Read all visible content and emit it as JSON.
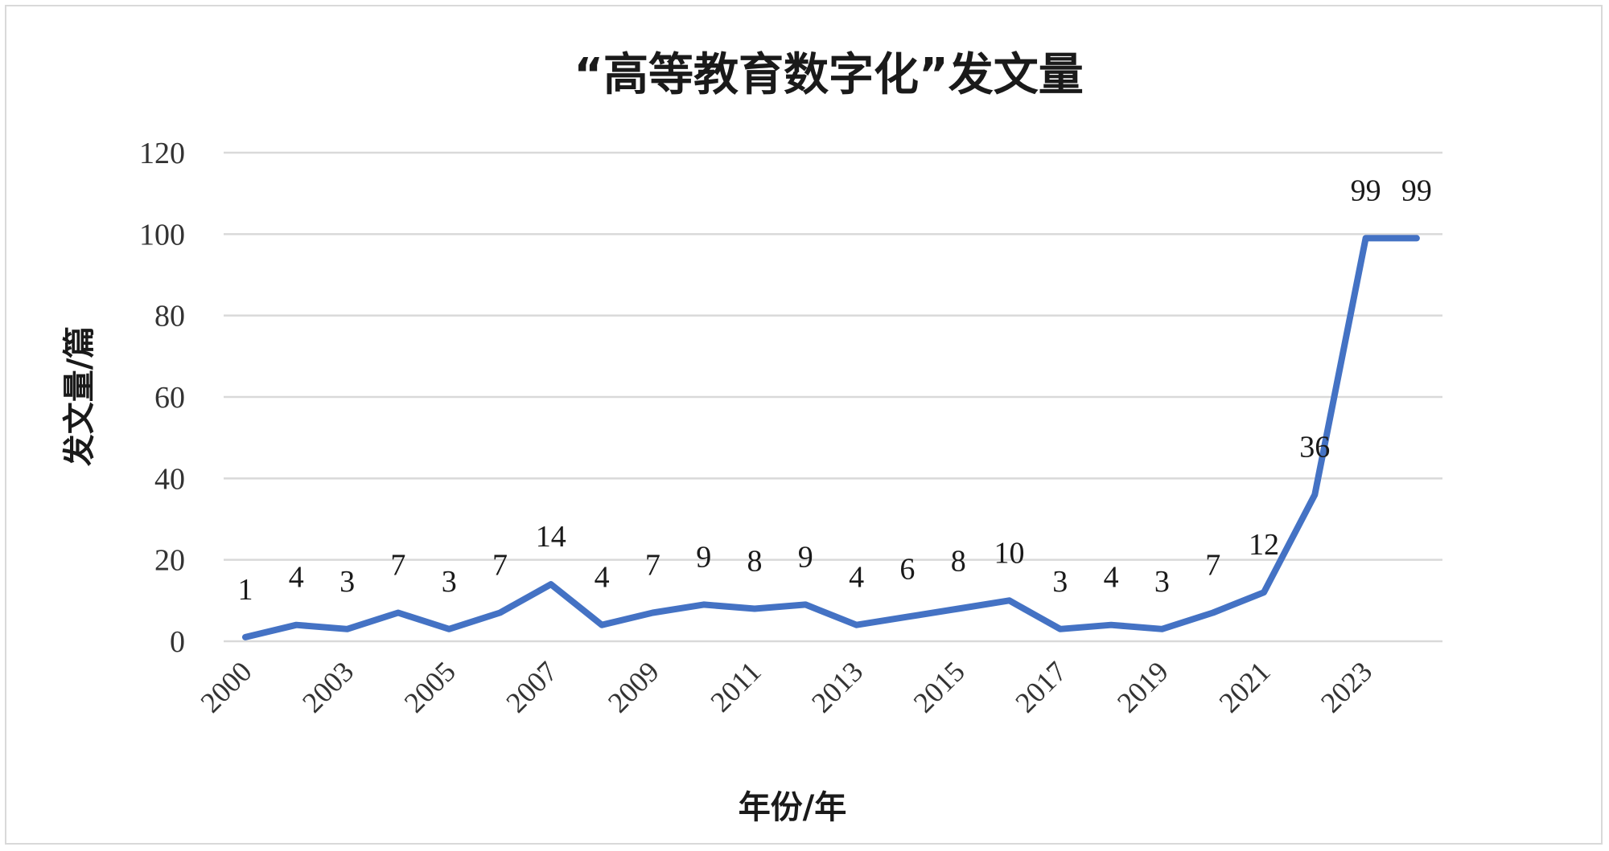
{
  "chart_data": {
    "type": "line",
    "title": "“高等教育数字化”发文量",
    "xlabel": "年份/年",
    "ylabel": "发文量/篇",
    "ylim": [
      0,
      120
    ],
    "yticks": [
      "0",
      "20",
      "40",
      "60",
      "80",
      "100",
      "120"
    ],
    "x_tick_labels": [
      "2000",
      "2003",
      "2005",
      "2007",
      "2009",
      "2011",
      "2013",
      "2015",
      "2017",
      "2019",
      "2021",
      "2023"
    ],
    "series": [
      {
        "color": "#4472c4",
        "values": [
          1,
          4,
          3,
          7,
          3,
          7,
          14,
          4,
          7,
          9,
          8,
          9,
          4,
          6,
          8,
          10,
          3,
          4,
          3,
          7,
          12,
          36,
          99,
          99
        ],
        "labels": [
          "1",
          "4",
          "3",
          "7",
          "3",
          "7",
          "14",
          "4",
          "7",
          "9",
          "8",
          "9",
          "4",
          "6",
          "8",
          "10",
          "3",
          "4",
          "3",
          "7",
          "12",
          "36",
          "99",
          "99"
        ]
      }
    ],
    "grid": true,
    "legend": "none"
  }
}
